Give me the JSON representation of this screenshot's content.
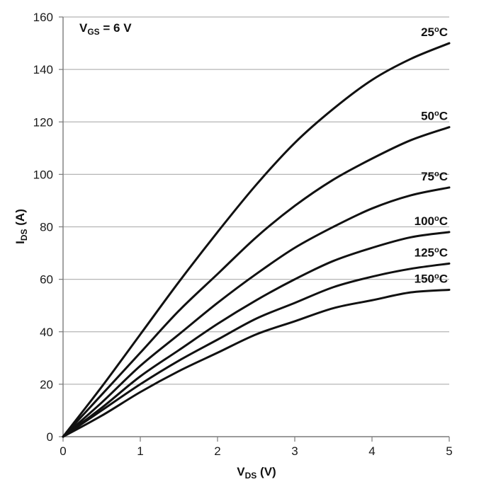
{
  "chart_data": {
    "type": "line",
    "annotation": {
      "main": "V",
      "sub": "GS",
      "rest": " = 6 V"
    },
    "xlabel": {
      "main": "V",
      "sub": "DS",
      "rest": " (V)"
    },
    "ylabel": {
      "main": "I",
      "sub": "DS",
      "rest": " (A)"
    },
    "xlim": [
      0,
      5
    ],
    "ylim": [
      0,
      160
    ],
    "xticks": [
      0,
      1,
      2,
      3,
      4,
      5
    ],
    "yticks": [
      0,
      20,
      40,
      60,
      80,
      100,
      120,
      140,
      160
    ],
    "grid": "horizontal",
    "line_color": "#111111",
    "grid_color": "#b5b5b5",
    "series": [
      {
        "name": "25°C",
        "label_num": "25",
        "label_unit": "C",
        "x": [
          0,
          0.5,
          1,
          1.5,
          2,
          2.5,
          3,
          3.5,
          4,
          4.5,
          5
        ],
        "y": [
          0,
          19,
          39,
          59,
          78,
          96,
          112,
          125,
          136,
          144,
          150
        ]
      },
      {
        "name": "50°C",
        "label_num": "50",
        "label_unit": "C",
        "x": [
          0,
          0.5,
          1,
          1.5,
          2,
          2.5,
          3,
          3.5,
          4,
          4.5,
          5
        ],
        "y": [
          0,
          16,
          32,
          48,
          62,
          76,
          88,
          98,
          106,
          113,
          118
        ]
      },
      {
        "name": "75°C",
        "label_num": "75",
        "label_unit": "C",
        "x": [
          0,
          0.5,
          1,
          1.5,
          2,
          2.5,
          3,
          3.5,
          4,
          4.5,
          5
        ],
        "y": [
          0,
          13,
          27,
          39,
          51,
          62,
          72,
          80,
          87,
          92,
          95
        ]
      },
      {
        "name": "100°C",
        "label_num": "100",
        "label_unit": "C",
        "x": [
          0,
          0.5,
          1,
          1.5,
          2,
          2.5,
          3,
          3.5,
          4,
          4.5,
          5
        ],
        "y": [
          0,
          11,
          23,
          33,
          43,
          52,
          60,
          67,
          72,
          76,
          78
        ]
      },
      {
        "name": "125°C",
        "label_num": "125",
        "label_unit": "C",
        "x": [
          0,
          0.5,
          1,
          1.5,
          2,
          2.5,
          3,
          3.5,
          4,
          4.5,
          5
        ],
        "y": [
          0,
          10,
          20,
          29,
          37,
          45,
          51,
          57,
          61,
          64,
          66
        ]
      },
      {
        "name": "150°C",
        "label_num": "150",
        "label_unit": "C",
        "x": [
          0,
          0.5,
          1,
          1.5,
          2,
          2.5,
          3,
          3.5,
          4,
          4.5,
          5
        ],
        "y": [
          0,
          8,
          17,
          25,
          32,
          39,
          44,
          49,
          52,
          55,
          56
        ]
      }
    ]
  }
}
